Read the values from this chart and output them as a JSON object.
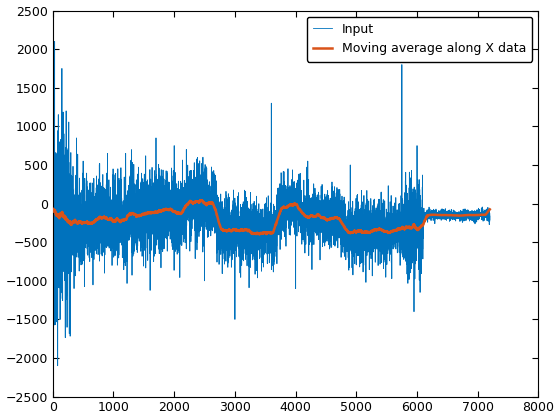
{
  "title": "",
  "xlabel": "",
  "ylabel": "",
  "xlim": [
    0,
    8000
  ],
  "ylim": [
    -2500,
    2500
  ],
  "xticks": [
    0,
    1000,
    2000,
    3000,
    4000,
    5000,
    6000,
    7000,
    8000
  ],
  "yticks": [
    -2500,
    -2000,
    -1500,
    -1000,
    -500,
    0,
    500,
    1000,
    1500,
    2000,
    2500
  ],
  "input_color": "#0072BD",
  "mavg_color": "#D95319",
  "input_label": "Input",
  "mavg_label": "Moving average along X data",
  "input_linewidth": 0.6,
  "mavg_linewidth": 1.8,
  "window": 150,
  "background_color": "#ffffff",
  "legend_fontsize": 9,
  "figsize": [
    5.6,
    4.2
  ],
  "dpi": 100
}
